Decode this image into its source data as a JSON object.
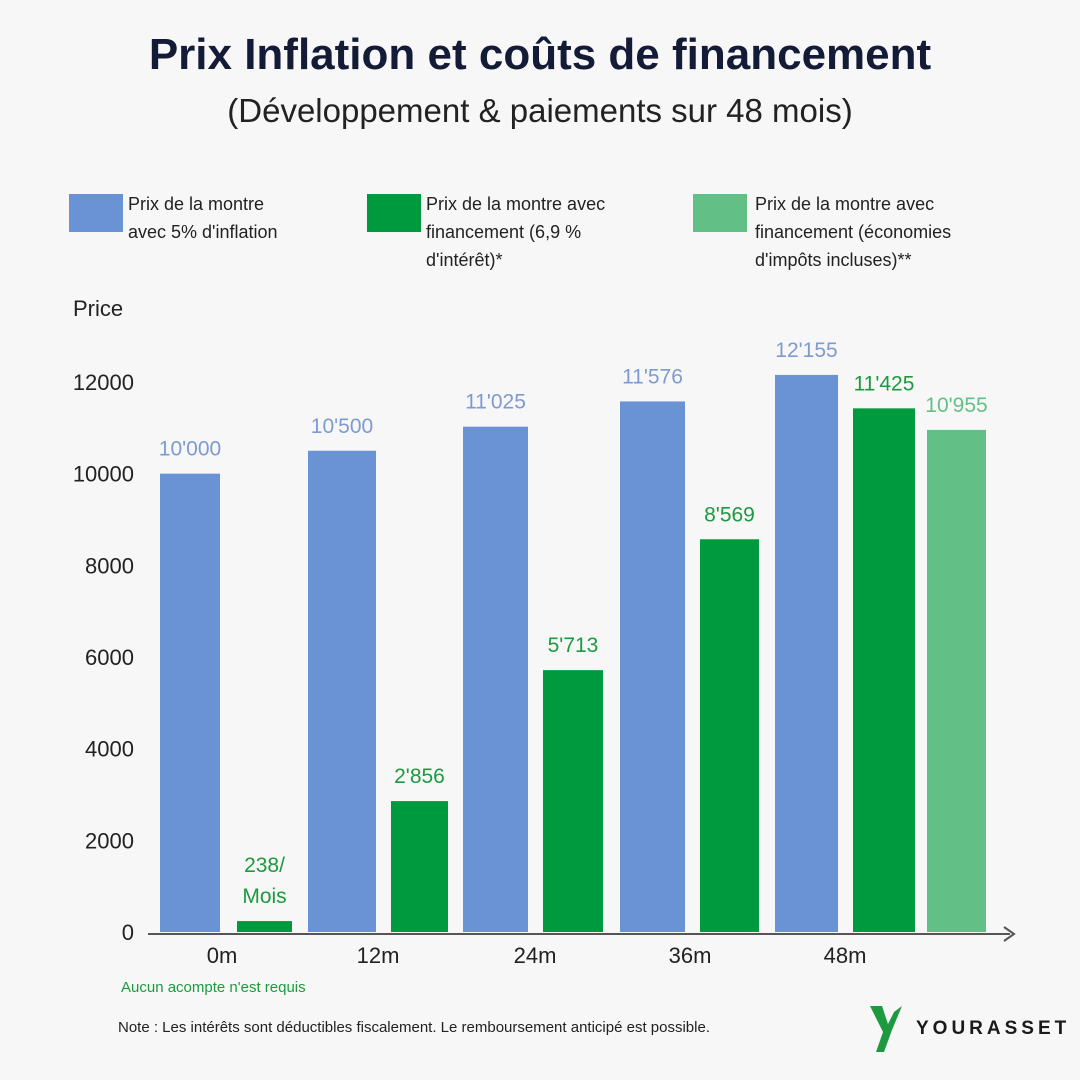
{
  "header": {
    "title": "Prix Inflation et coûts de financement",
    "subtitle": "(Développement & paiements sur 48 mois)"
  },
  "legend": [
    {
      "label_lines": [
        "Prix de la montre",
        "avec 5% d'inflation"
      ],
      "color": "#6a93d6"
    },
    {
      "label_lines": [
        "Prix de la montre avec",
        "financement (6,9 %",
        "d'intérêt)*"
      ],
      "color": "#009a3e"
    },
    {
      "label_lines": [
        "Prix de la montre avec",
        "financement (économies",
        "d'impôts incluses)**"
      ],
      "color": "#62c087"
    }
  ],
  "chart_data": {
    "type": "bar",
    "ylabel": "Price",
    "ylim": [
      0,
      12000
    ],
    "yticks": [
      "0",
      "2000",
      "4000",
      "6000",
      "8000",
      "10000",
      "12000"
    ],
    "categories": [
      "0m",
      "12m",
      "24m",
      "36m",
      "48m"
    ],
    "series": [
      {
        "name": "Prix de la montre avec 5% d'inflation",
        "color": "#6a93d6",
        "values": [
          10000,
          10500,
          11025,
          11576,
          12155
        ],
        "labels": [
          "10'000",
          "10'500",
          "11'025",
          "11'576",
          "12'155"
        ]
      },
      {
        "name": "Prix de la montre avec financement (6,9 % d'intérêt)*",
        "color": "#009a3e",
        "values": [
          238,
          2856,
          5713,
          8569,
          11425
        ],
        "labels": [
          "238/\nMois",
          "2'856",
          "5'713",
          "8'569",
          "11'425"
        ]
      },
      {
        "name": "Prix de la montre avec financement (économies d'impôts incluses)**",
        "color": "#62c087",
        "values": [
          null,
          null,
          null,
          null,
          10955
        ],
        "labels": [
          "",
          "",
          "",
          "",
          "10'955"
        ]
      }
    ],
    "label_colors": [
      "#7d9bd0",
      "#1d9a3f",
      "#62c087"
    ]
  },
  "footer": {
    "no_deposit": "Aucun acompte n'est requis",
    "note": "Note : Les intérêts sont déductibles fiscalement. Le remboursement anticipé est possible.",
    "brand": "YOURASSET"
  }
}
